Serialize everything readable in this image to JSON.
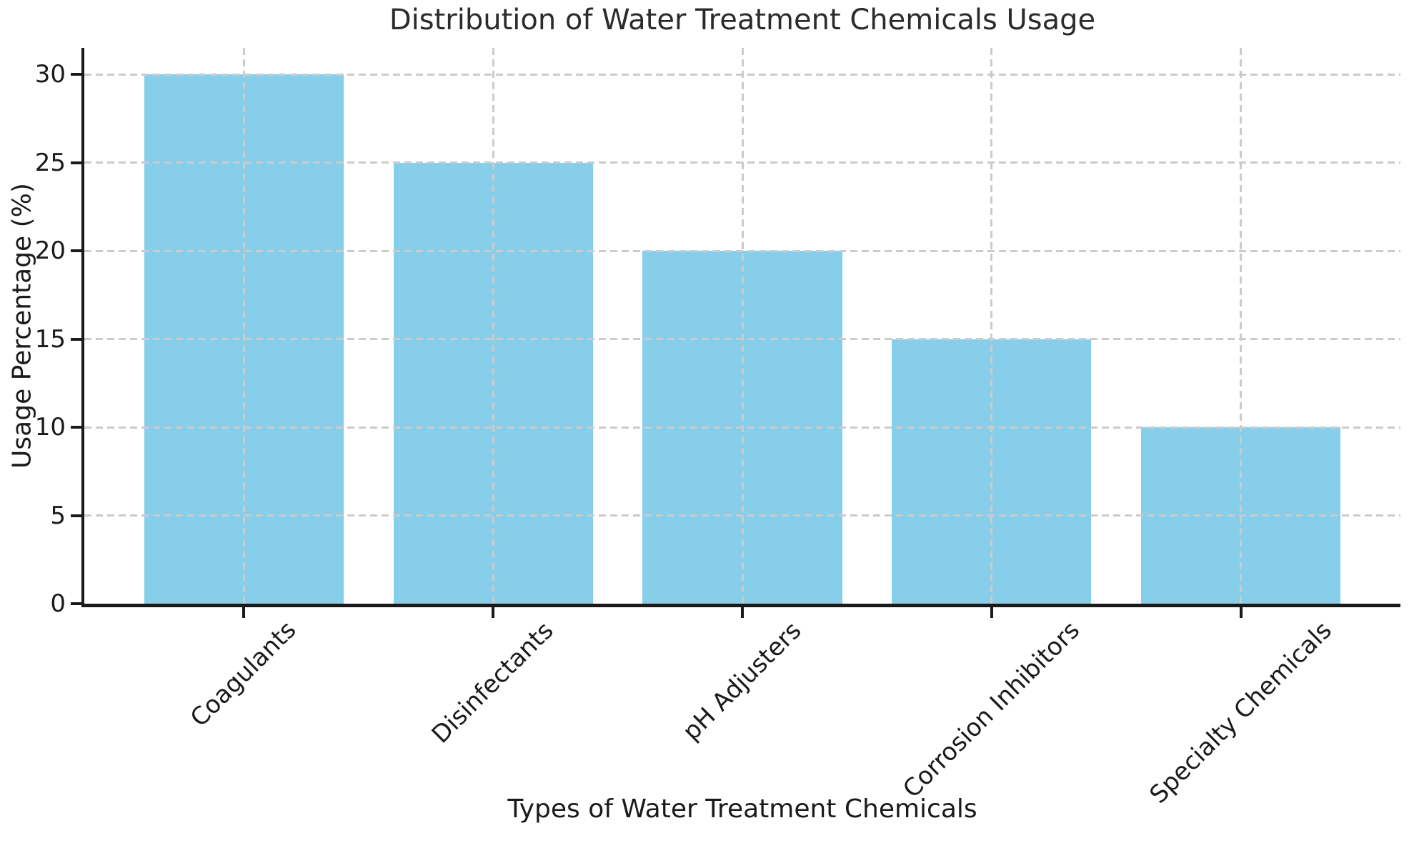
{
  "chart_data": {
    "type": "bar",
    "title": "Distribution of Water Treatment Chemicals Usage",
    "xlabel": "Types of Water Treatment Chemicals",
    "ylabel": "Usage Percentage (%)",
    "categories": [
      "Coagulants",
      "Disinfectants",
      "pH Adjusters",
      "Corrosion Inhibitors",
      "Specialty Chemicals"
    ],
    "values": [
      30,
      25,
      20,
      15,
      10
    ],
    "yticks": [
      0,
      5,
      10,
      15,
      20,
      25,
      30
    ],
    "ylim": [
      0,
      31.5
    ],
    "bar_width_fraction": 0.8,
    "x_tick_rotation": 45,
    "grid": true,
    "grid_style": "dashed",
    "legend": "none",
    "colors": {
      "bar": "#87CEEB",
      "grid": "#cbcbcb",
      "axis": "#1a1a1a",
      "text": "#1a1a1a",
      "title": "#2b2b2b",
      "background": "#ffffff"
    }
  }
}
